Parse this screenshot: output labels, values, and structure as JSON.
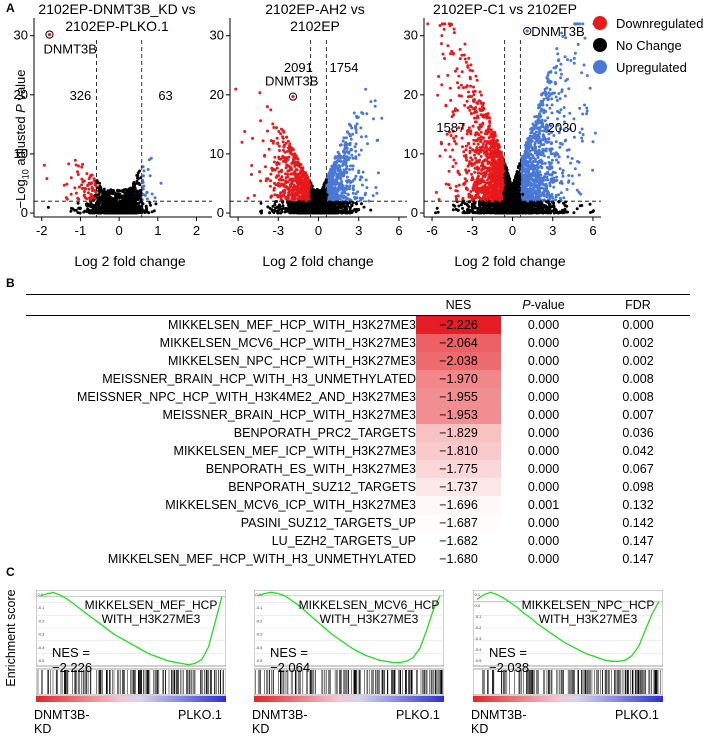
{
  "panel_labels": {
    "a": "A",
    "b": "B",
    "c": "C"
  },
  "volcano_common": {
    "xlabel": "Log 2  fold  change",
    "ylabel_prefix": "−Log",
    "ylabel_sub": "10",
    "ylabel_main": " adjusted ",
    "ylabel_italic": "P",
    "ylabel_suffix": " value"
  },
  "legend": [
    {
      "label": "Downregulated",
      "color": "#e8191b"
    },
    {
      "label": "No Change",
      "color": "#000000"
    },
    {
      "label": "Upregulated",
      "color": "#4a78d6"
    }
  ],
  "chart_data": [
    {
      "type": "scatter",
      "title_line1": "2102EP-DNMT3B_KD vs",
      "title_line2": "2102EP-PLKO.1",
      "xlim": [
        -2.2,
        2.4
      ],
      "ylim": [
        0,
        33
      ],
      "xticks": [
        -2,
        -1,
        0,
        1,
        2
      ],
      "yticks": [
        0,
        10,
        20,
        30
      ],
      "fc_cutoff": 0.585,
      "p_cutoff_y": 2,
      "down_count": "326",
      "up_count": "63",
      "highlight": {
        "label": "DNMT3B",
        "x": -1.8,
        "y": 30.2
      },
      "spread": {
        "down": 1.35,
        "up": 0.9,
        "height": 9
      }
    },
    {
      "type": "scatter",
      "title_line1": "2102EP-AH2 vs",
      "title_line2": "2102EP",
      "xlim": [
        -6.6,
        6.6
      ],
      "ylim": [
        0,
        33
      ],
      "xticks": [
        -6,
        -3,
        0,
        3,
        6
      ],
      "yticks": [
        0,
        10,
        20,
        30
      ],
      "fc_cutoff": 0.585,
      "p_cutoff_y": 2,
      "down_count": "2091",
      "up_count": "1754",
      "highlight": {
        "label": "DNMT3B",
        "x": -1.9,
        "y": 19.7
      },
      "spread": {
        "down": 4.2,
        "up": 3.4,
        "height": 17
      }
    },
    {
      "type": "scatter",
      "title_line1": "2102EP-C1 vs 2102EP",
      "title_line2": "",
      "xlim": [
        -6.6,
        6.6
      ],
      "ylim": [
        0,
        33
      ],
      "xticks": [
        -6,
        -3,
        0,
        3,
        6
      ],
      "yticks": [
        0,
        10,
        20,
        30
      ],
      "fc_cutoff": 0.585,
      "p_cutoff_y": 2,
      "down_count": "1587",
      "up_count": "2030",
      "highlight": {
        "label": "DNMT3B",
        "x": 1.1,
        "y": 30.8
      },
      "spread": {
        "down": 5.0,
        "up": 4.8,
        "height": 31
      }
    }
  ],
  "table": {
    "headers": {
      "name": "",
      "nes": "NES",
      "p_italic": "P",
      "p_rest": "-value",
      "fdr": "FDR"
    },
    "rows": [
      {
        "name": "MIKKELSEN_MEF_HCP_WITH_H3K27ME3",
        "nes": "−2.226",
        "nes_value": -2.226,
        "p": "0.000",
        "fdr": "0.000"
      },
      {
        "name": "MIKKELSEN_MCV6_HCP_WITH_H3K27ME3",
        "nes": "−2.064",
        "nes_value": -2.064,
        "p": "0.000",
        "fdr": "0.002"
      },
      {
        "name": "MIKKELSEN_NPC_HCP_WITH_H3K27ME3",
        "nes": "−2.038",
        "nes_value": -2.038,
        "p": "0.000",
        "fdr": "0.002"
      },
      {
        "name": "MEISSNER_BRAIN_HCP_WITH_H3_UNMETHYLATED",
        "nes": "−1.970",
        "nes_value": -1.97,
        "p": "0.000",
        "fdr": "0.008"
      },
      {
        "name": "MEISSNER_NPC_HCP_WITH_H3K4ME2_AND_H3K27ME3",
        "nes": "−1.955",
        "nes_value": -1.955,
        "p": "0.000",
        "fdr": "0.008"
      },
      {
        "name": "MEISSNER_BRAIN_HCP_WITH_H3K27ME3",
        "nes": "−1.953",
        "nes_value": -1.953,
        "p": "0.000",
        "fdr": "0.007"
      },
      {
        "name": "BENPORATH_PRC2_TARGETS",
        "nes": "−1.829",
        "nes_value": -1.829,
        "p": "0.000",
        "fdr": "0.036"
      },
      {
        "name": "MIKKELSEN_MEF_ICP_WITH_H3K27ME3",
        "nes": "−1.810",
        "nes_value": -1.81,
        "p": "0.000",
        "fdr": "0.042"
      },
      {
        "name": "BENPORATH_ES_WITH_H3K27ME3",
        "nes": "−1.775",
        "nes_value": -1.775,
        "p": "0.000",
        "fdr": "0.067"
      },
      {
        "name": "BENPORATH_SUZ12_TARGETS",
        "nes": "−1.737",
        "nes_value": -1.737,
        "p": "0.000",
        "fdr": "0.098"
      },
      {
        "name": "MIKKELSEN_MCV6_ICP_WITH_H3K27ME3",
        "nes": "−1.696",
        "nes_value": -1.696,
        "p": "0.001",
        "fdr": "0.132"
      },
      {
        "name": "PASINI_SUZ12_TARGETS_UP",
        "nes": "−1.687",
        "nes_value": -1.687,
        "p": "0.000",
        "fdr": "0.142"
      },
      {
        "name": "LU_EZH2_TARGETS_UP",
        "nes": "−1.682",
        "nes_value": -1.682,
        "p": "0.000",
        "fdr": "0.147"
      },
      {
        "name": "MIKKELSEN_MEF_HCP_WITH_H3_UNMETHYLATED",
        "nes": "−1.680",
        "nes_value": -1.68,
        "p": "0.000",
        "fdr": "0.147"
      }
    ]
  },
  "gsea": {
    "ylabel": "Enrichment score",
    "left_label": "DNMT3B-KD",
    "right_label": "PLKO.1",
    "plots": [
      {
        "title_line1": "MIKKELSEN_MEF_HCP",
        "title_line2": "WITH_H3K27ME3",
        "nes_text": "NES = −2.226",
        "ymin": -0.55,
        "ymax": 0.05,
        "yticks": [
          "0.0",
          "-0.1",
          "-0.2",
          "-0.3",
          "-0.4",
          "-0.5"
        ],
        "curve": [
          0,
          0.02,
          0.03,
          0.01,
          -0.02,
          -0.06,
          -0.1,
          -0.14,
          -0.18,
          -0.22,
          -0.26,
          -0.3,
          -0.33,
          -0.36,
          -0.39,
          -0.42,
          -0.45,
          -0.47,
          -0.49,
          -0.51,
          -0.52,
          -0.53,
          -0.54,
          -0.53,
          -0.5,
          -0.4,
          -0.2,
          0
        ]
      },
      {
        "title_line1": "MIKKELSEN_MCV6_HCP",
        "title_line2": "WITH_H3K27ME3",
        "nes_text": "NES = −2.064",
        "ymin": -0.6,
        "ymax": 0.05,
        "yticks": [
          "0.0",
          "-0.1",
          "-0.2",
          "-0.3",
          "-0.4",
          "-0.5"
        ],
        "curve": [
          0,
          0.02,
          0.03,
          0.02,
          0,
          -0.04,
          -0.08,
          -0.13,
          -0.18,
          -0.23,
          -0.28,
          -0.33,
          -0.37,
          -0.41,
          -0.45,
          -0.48,
          -0.51,
          -0.53,
          -0.55,
          -0.56,
          -0.57,
          -0.57,
          -0.56,
          -0.53,
          -0.45,
          -0.3,
          -0.12,
          0
        ]
      },
      {
        "title_line1": "MIKKELSEN_NPC_HCP",
        "title_line2": "WITH_H3K27ME3",
        "nes_text": "NES = −2.038",
        "ymin": -0.55,
        "ymax": 0.1,
        "yticks": [
          "0.1",
          "0.0",
          "-0.1",
          "-0.2",
          "-0.3",
          "-0.4",
          "-0.5"
        ],
        "curve": [
          0.02,
          0.06,
          0.08,
          0.06,
          0.03,
          -0.01,
          -0.05,
          -0.1,
          -0.14,
          -0.19,
          -0.23,
          -0.27,
          -0.31,
          -0.35,
          -0.38,
          -0.41,
          -0.44,
          -0.46,
          -0.48,
          -0.5,
          -0.51,
          -0.51,
          -0.5,
          -0.46,
          -0.38,
          -0.24,
          -0.1,
          0
        ]
      }
    ]
  }
}
